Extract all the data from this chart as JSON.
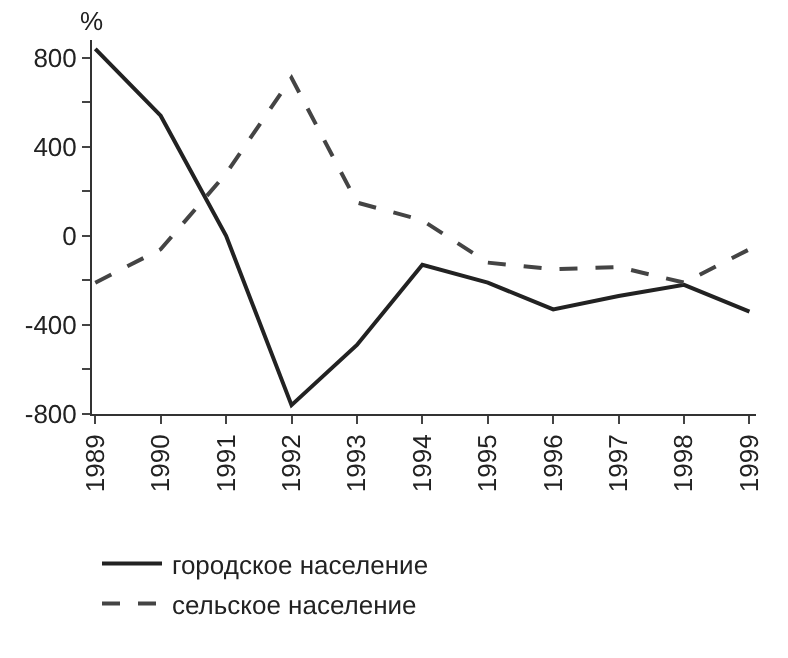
{
  "chart_data": {
    "type": "line",
    "ylabel": "%",
    "categories": [
      "1989",
      "1990",
      "1991",
      "1992",
      "1993",
      "1994",
      "1995",
      "1996",
      "1997",
      "1998",
      "1999"
    ],
    "series": [
      {
        "name": "городское население",
        "color": "#222222",
        "line_style": "solid",
        "values": [
          840,
          540,
          0,
          -760,
          -490,
          -130,
          -210,
          -330,
          -270,
          -220,
          -340
        ]
      },
      {
        "name": "сельское население",
        "color": "#444444",
        "line_style": "dashed",
        "values": [
          -210,
          -60,
          280,
          710,
          150,
          70,
          -120,
          -150,
          -140,
          -210,
          -60
        ]
      }
    ],
    "ylim": [
      -800,
      880
    ],
    "yticks": [
      -800,
      {
        "value": -600,
        "label": null
      },
      -400,
      {
        "value": -200,
        "label": null
      },
      0,
      {
        "value": 200,
        "label": null
      },
      400,
      {
        "value": 600,
        "label": null
      },
      800
    ],
    "legend": "bottom",
    "marker": "none"
  }
}
